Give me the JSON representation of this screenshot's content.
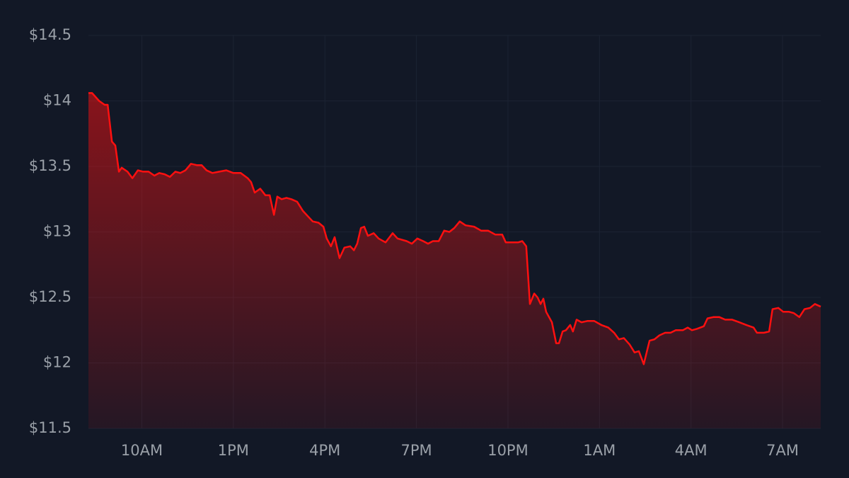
{
  "chart_data": {
    "type": "area",
    "x": [
      8.25,
      8.37,
      8.6,
      8.78,
      8.88,
      9.02,
      9.13,
      9.25,
      9.34,
      9.53,
      9.69,
      9.87,
      10.04,
      10.22,
      10.41,
      10.57,
      10.75,
      10.92,
      11.1,
      11.26,
      11.43,
      11.61,
      11.8,
      11.96,
      12.12,
      12.31,
      12.54,
      12.77,
      13.0,
      13.24,
      13.47,
      13.58,
      13.7,
      13.88,
      14.05,
      14.19,
      14.33,
      14.44,
      14.58,
      14.74,
      14.9,
      15.09,
      15.28,
      15.44,
      15.6,
      15.79,
      15.95,
      16.06,
      16.2,
      16.32,
      16.48,
      16.64,
      16.83,
      16.95,
      17.06,
      17.18,
      17.29,
      17.41,
      17.6,
      17.76,
      17.99,
      18.22,
      18.38,
      18.68,
      18.85,
      19.03,
      19.22,
      19.38,
      19.54,
      19.73,
      19.91,
      20.08,
      20.24,
      20.42,
      20.61,
      20.89,
      21.12,
      21.35,
      21.58,
      21.81,
      21.93,
      22.16,
      22.33,
      22.47,
      22.6,
      22.72,
      22.86,
      22.97,
      23.07,
      23.16,
      23.25,
      23.44,
      23.58,
      23.67,
      23.79,
      23.9,
      24.04,
      24.13,
      24.25,
      24.41,
      24.6,
      24.83,
      25.06,
      25.29,
      25.48,
      25.64,
      25.8,
      25.99,
      26.15,
      26.29,
      26.45,
      26.64,
      26.8,
      26.96,
      27.15,
      27.33,
      27.5,
      27.73,
      27.89,
      28.03,
      28.19,
      28.42,
      28.54,
      28.73,
      28.93,
      29.12,
      29.35,
      29.58,
      29.81,
      30.05,
      30.16,
      30.39,
      30.56,
      30.67,
      30.86,
      31.02,
      31.21,
      31.37,
      31.55,
      31.72,
      31.9,
      32.06,
      32.25
    ],
    "series": [
      {
        "color": "#ff1010",
        "values": [
          14.06,
          14.06,
          14.0,
          13.97,
          13.97,
          13.69,
          13.66,
          13.46,
          13.49,
          13.46,
          13.41,
          13.47,
          13.46,
          13.46,
          13.43,
          13.45,
          13.44,
          13.42,
          13.46,
          13.45,
          13.47,
          13.52,
          13.51,
          13.51,
          13.47,
          13.45,
          13.46,
          13.47,
          13.45,
          13.45,
          13.41,
          13.38,
          13.3,
          13.33,
          13.28,
          13.28,
          13.13,
          13.27,
          13.25,
          13.26,
          13.25,
          13.23,
          13.16,
          13.12,
          13.08,
          13.07,
          13.04,
          12.95,
          12.89,
          12.96,
          12.8,
          12.88,
          12.89,
          12.86,
          12.91,
          13.03,
          13.04,
          12.97,
          12.99,
          12.95,
          12.92,
          12.99,
          12.95,
          12.93,
          12.91,
          12.95,
          12.93,
          12.91,
          12.93,
          12.93,
          13.01,
          13.0,
          13.03,
          13.08,
          13.05,
          13.04,
          13.01,
          13.01,
          12.98,
          12.98,
          12.92,
          12.92,
          12.92,
          12.93,
          12.89,
          12.45,
          12.53,
          12.5,
          12.45,
          12.49,
          12.39,
          12.31,
          12.15,
          12.15,
          12.24,
          12.25,
          12.29,
          12.24,
          12.33,
          12.31,
          12.32,
          12.32,
          12.29,
          12.27,
          12.23,
          12.18,
          12.19,
          12.14,
          12.08,
          12.09,
          11.99,
          12.17,
          12.18,
          12.21,
          12.23,
          12.23,
          12.25,
          12.25,
          12.27,
          12.25,
          12.26,
          12.28,
          12.34,
          12.35,
          12.35,
          12.33,
          12.33,
          12.31,
          12.29,
          12.27,
          12.23,
          12.23,
          12.24,
          12.41,
          12.42,
          12.39,
          12.39,
          12.38,
          12.35,
          12.41,
          12.42,
          12.45,
          12.43
        ]
      }
    ],
    "xlim": [
      8.25,
      32.25
    ],
    "xticks": [
      {
        "value": 10,
        "label": "10AM"
      },
      {
        "value": 13,
        "label": "1PM"
      },
      {
        "value": 16,
        "label": "4PM"
      },
      {
        "value": 19,
        "label": "7PM"
      },
      {
        "value": 22,
        "label": "10PM"
      },
      {
        "value": 25,
        "label": "1AM"
      },
      {
        "value": 28,
        "label": "4AM"
      },
      {
        "value": 31,
        "label": "7AM"
      }
    ],
    "ylim": [
      11.5,
      14.5
    ],
    "yticks": [
      {
        "value": 11.5,
        "label": "$11.5"
      },
      {
        "value": 12,
        "label": "$12"
      },
      {
        "value": 12.5,
        "label": "$12.5"
      },
      {
        "value": 13,
        "label": "$13"
      },
      {
        "value": 13.5,
        "label": "$13.5"
      },
      {
        "value": 14,
        "label": "$14"
      },
      {
        "value": 14.5,
        "label": "$14.5"
      }
    ],
    "grid": true
  }
}
